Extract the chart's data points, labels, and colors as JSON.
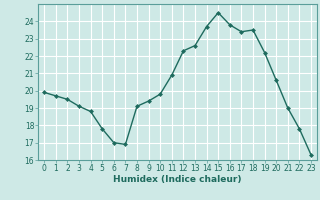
{
  "x": [
    0,
    1,
    2,
    3,
    4,
    5,
    6,
    7,
    8,
    9,
    10,
    11,
    12,
    13,
    14,
    15,
    16,
    17,
    18,
    19,
    20,
    21,
    22,
    23
  ],
  "y": [
    19.9,
    19.7,
    19.5,
    19.1,
    18.8,
    17.8,
    17.0,
    16.9,
    19.1,
    19.4,
    19.8,
    20.9,
    22.3,
    22.6,
    23.7,
    24.5,
    23.8,
    23.4,
    23.5,
    22.2,
    20.6,
    19.0,
    17.8,
    16.3
  ],
  "line_color": "#1e6b5e",
  "marker": "D",
  "markersize": 2.0,
  "linewidth": 1.0,
  "xlabel": "Humidex (Indice chaleur)",
  "xlim": [
    -0.5,
    23.5
  ],
  "ylim": [
    16,
    25
  ],
  "yticks": [
    16,
    17,
    18,
    19,
    20,
    21,
    22,
    23,
    24
  ],
  "xticks": [
    0,
    1,
    2,
    3,
    4,
    5,
    6,
    7,
    8,
    9,
    10,
    11,
    12,
    13,
    14,
    15,
    16,
    17,
    18,
    19,
    20,
    21,
    22,
    23
  ],
  "bg_color": "#cee9e6",
  "grid_color": "#ffffff",
  "label_fontsize": 6.5,
  "tick_fontsize": 5.5,
  "spine_color": "#5a9e9a"
}
